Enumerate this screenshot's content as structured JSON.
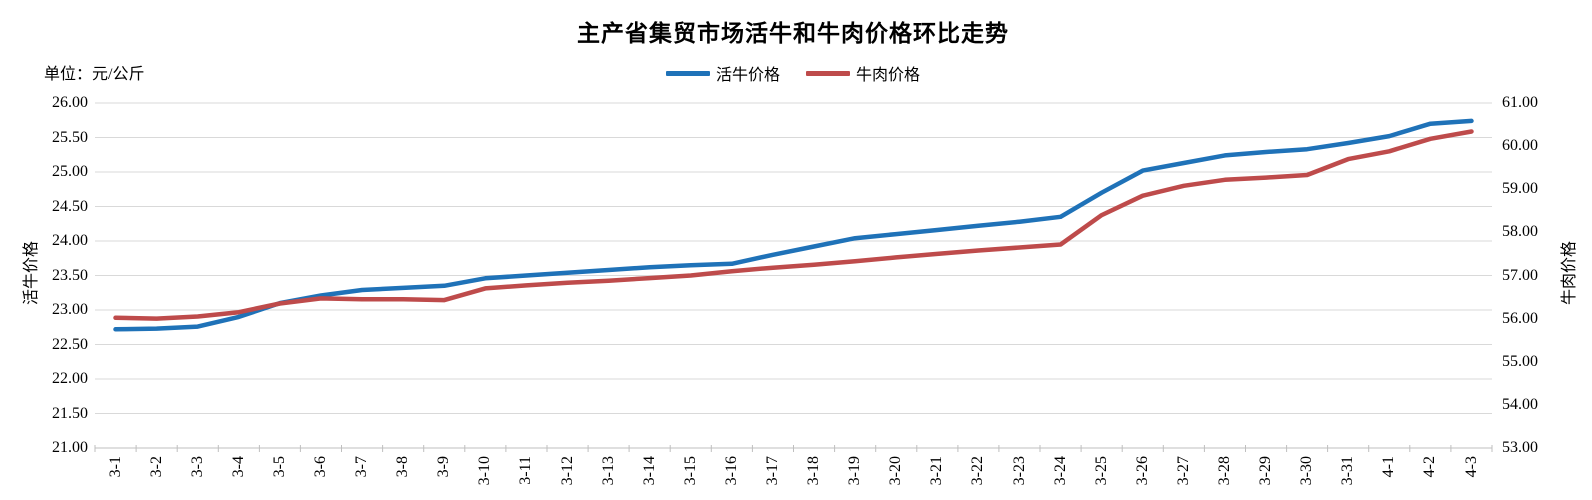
{
  "chart": {
    "title": "主产省集贸市场活牛和牛肉价格环比走势",
    "unit_label": "单位：元/公斤",
    "left_axis_title": "活牛价格",
    "right_axis_title": "牛肉价格",
    "legend": [
      {
        "label": "活牛价格",
        "color": "#1F72B8"
      },
      {
        "label": "牛肉价格",
        "color": "#BE4B4B"
      }
    ]
  },
  "chart_data": {
    "type": "line",
    "title": "主产省集贸市场活牛和牛肉价格环比走势",
    "categories": [
      "3-1",
      "3-2",
      "3-3",
      "3-4",
      "3-5",
      "3-6",
      "3-7",
      "3-8",
      "3-9",
      "3-10",
      "3-11",
      "3-12",
      "3-13",
      "3-14",
      "3-15",
      "3-16",
      "3-17",
      "3-18",
      "3-19",
      "3-20",
      "3-21",
      "3-22",
      "3-23",
      "3-24",
      "3-25",
      "3-26",
      "3-27",
      "3-28",
      "3-29",
      "3-30",
      "3-31",
      "4-1",
      "4-2",
      "4-3"
    ],
    "series": [
      {
        "name": "活牛价格",
        "axis": "left",
        "color": "#1F72B8",
        "values": [
          22.72,
          22.73,
          22.76,
          22.9,
          23.1,
          23.21,
          23.29,
          23.32,
          23.35,
          23.46,
          23.5,
          23.54,
          23.58,
          23.62,
          23.65,
          23.67,
          23.8,
          23.92,
          24.04,
          24.1,
          24.16,
          24.22,
          24.28,
          24.35,
          24.7,
          25.02,
          25.13,
          25.24,
          25.29,
          25.33,
          25.42,
          25.52,
          25.7,
          25.74
        ]
      },
      {
        "name": "牛肉价格",
        "axis": "right",
        "color": "#BE4B4B",
        "values": [
          56.02,
          56.0,
          56.05,
          56.15,
          56.35,
          56.47,
          56.45,
          56.45,
          56.43,
          56.7,
          56.77,
          56.83,
          56.88,
          56.94,
          57.0,
          57.1,
          57.18,
          57.25,
          57.33,
          57.42,
          57.5,
          57.58,
          57.65,
          57.72,
          58.4,
          58.85,
          59.08,
          59.22,
          59.27,
          59.33,
          59.7,
          59.88,
          60.17,
          60.34
        ]
      }
    ],
    "left_axis": {
      "title": "活牛价格",
      "unit": "元/公斤",
      "min": 21.0,
      "max": 26.0,
      "tick_step": 0.5,
      "tick_labels": [
        "26.00",
        "25.50",
        "25.00",
        "24.50",
        "24.00",
        "23.50",
        "23.00",
        "22.50",
        "22.00",
        "21.50",
        "21.00"
      ]
    },
    "right_axis": {
      "title": "牛肉价格",
      "min": 53.0,
      "max": 61.0,
      "tick_step": 1.0,
      "tick_labels": [
        "61.00",
        "60.00",
        "59.00",
        "58.00",
        "57.00",
        "56.00",
        "55.00",
        "54.00",
        "53.00"
      ]
    },
    "grid": true,
    "legend_position": "top-center",
    "x_labels_rotation": -90
  }
}
